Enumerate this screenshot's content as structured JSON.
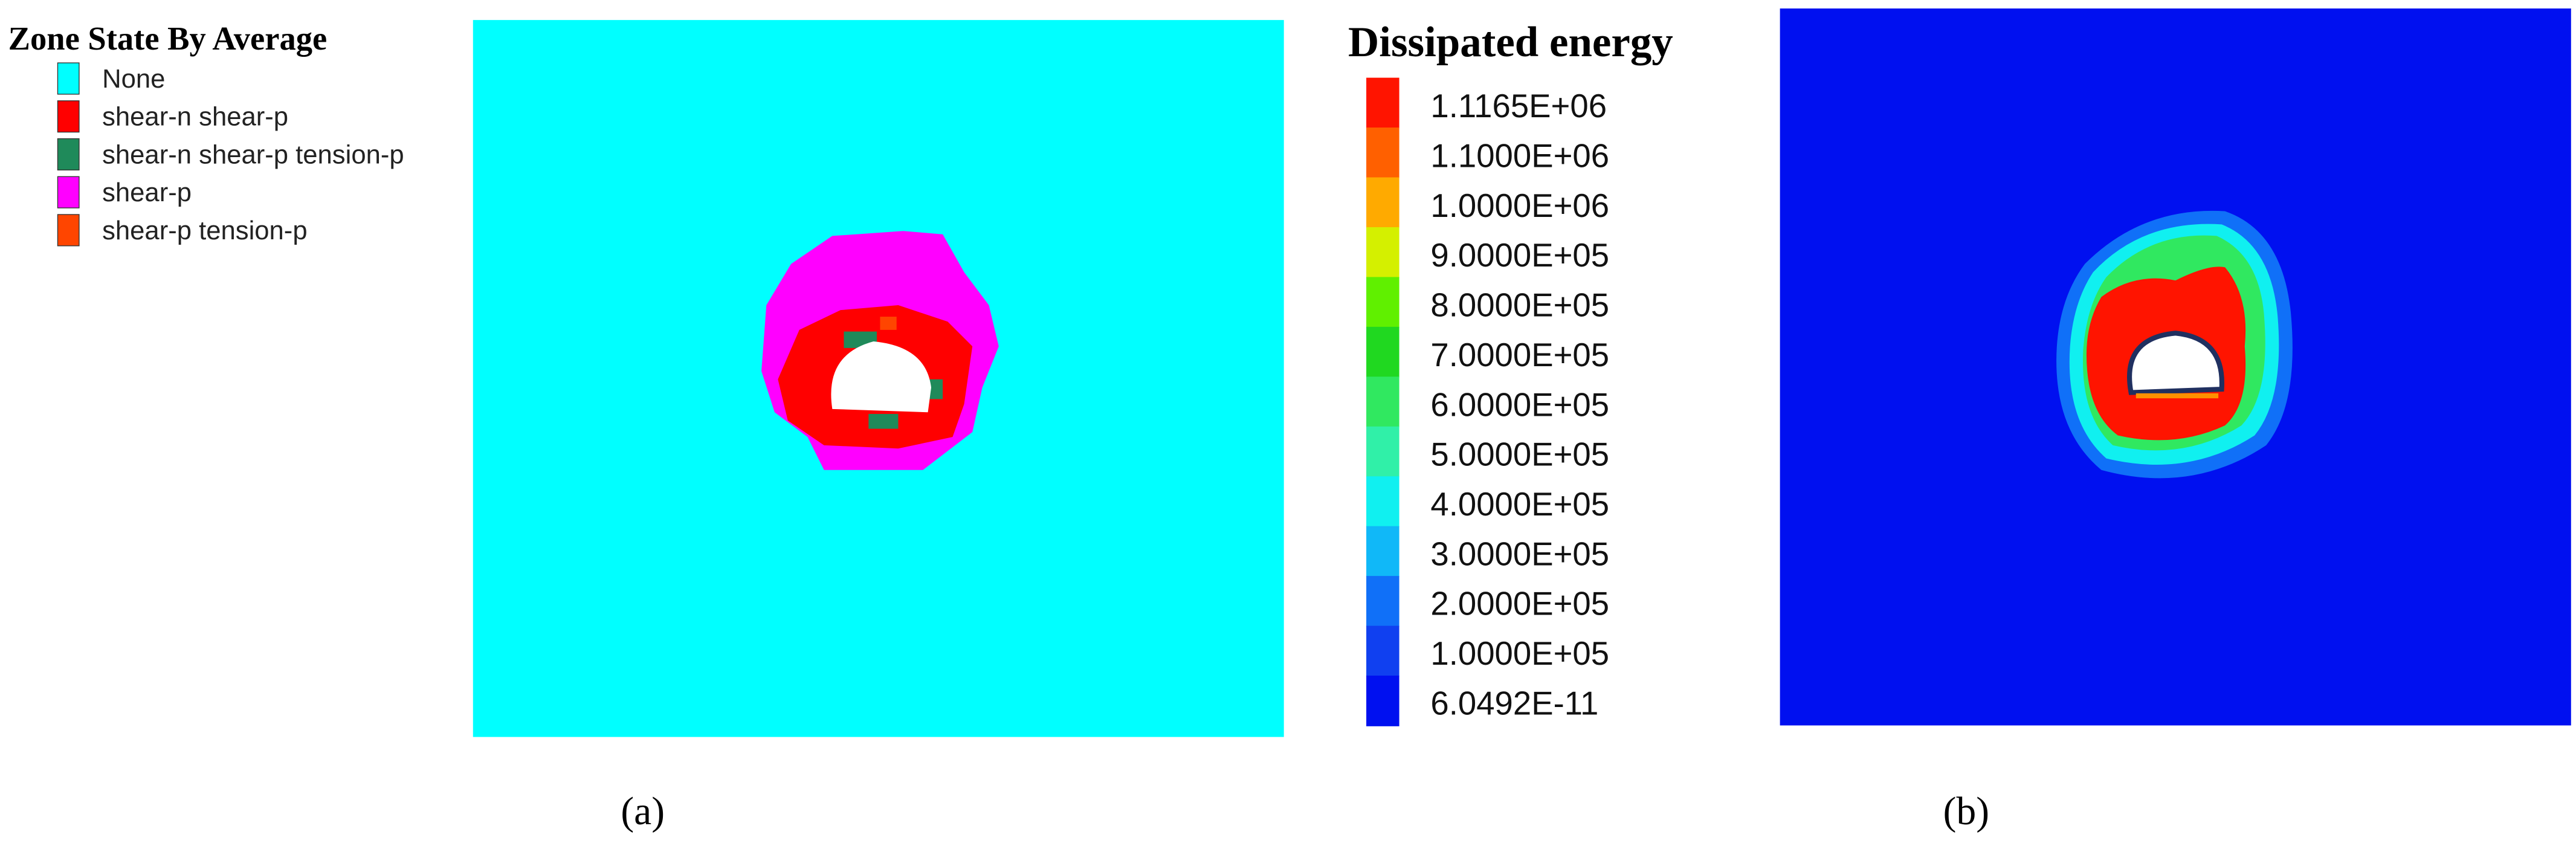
{
  "zone_legend": {
    "title": "Zone State By Average",
    "items": [
      {
        "label": "None",
        "color": "#00ffff"
      },
      {
        "label": "shear-n shear-p",
        "color": "#ff0000"
      },
      {
        "label": "shear-n shear-p tension-p",
        "color": "#1f8a5a"
      },
      {
        "label": "shear-p",
        "color": "#ff00ff"
      },
      {
        "label": "shear-p tension-p",
        "color": "#ff4500"
      }
    ]
  },
  "energy_legend": {
    "title": "Dissipated energy",
    "labels": [
      "1.1165E+06",
      "1.1000E+06",
      "1.0000E+06",
      "9.0000E+05",
      "8.0000E+05",
      "7.0000E+05",
      "6.0000E+05",
      "5.0000E+05",
      "4.0000E+05",
      "3.0000E+05",
      "2.0000E+05",
      "1.0000E+05",
      "6.0492E-11"
    ],
    "colors": [
      "#ff1400",
      "#ff6000",
      "#ffaa00",
      "#d4f000",
      "#60f000",
      "#20d820",
      "#30e860",
      "#30f0a8",
      "#10f0f0",
      "#10b8f8",
      "#1070f8",
      "#1040f0",
      "#0010f0"
    ]
  },
  "panel_labels": [
    "(a)",
    "(b)"
  ]
}
